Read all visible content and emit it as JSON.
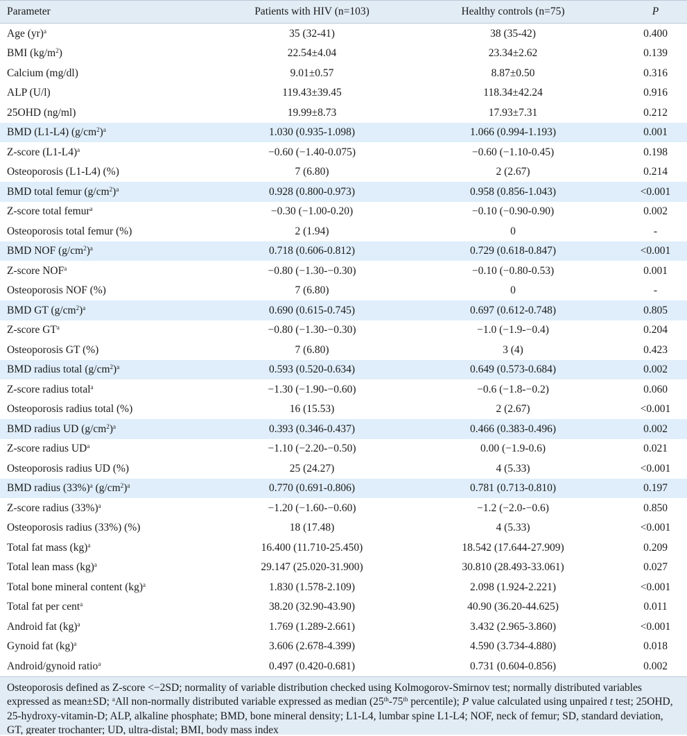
{
  "headers": {
    "parameter": "Parameter",
    "hiv": "Patients with HIV (n=103)",
    "controls": "Healthy controls (n=75)",
    "p": "P"
  },
  "rows": [
    {
      "label": "Age (yr)",
      "sup": "a",
      "hiv": "35 (32-41)",
      "ctrl": "38 (35-42)",
      "p": "0.400",
      "shade": false
    },
    {
      "label": "BMI (kg/m",
      "unitSup": "2",
      "suffix": ")",
      "hiv": "22.54±4.04",
      "ctrl": "23.34±2.62",
      "p": "0.139",
      "shade": false
    },
    {
      "label": "Calcium (mg/dl)",
      "hiv": "9.01±0.57",
      "ctrl": "8.87±0.50",
      "p": "0.316",
      "shade": false
    },
    {
      "label": "ALP (U/l)",
      "hiv": "119.43±39.45",
      "ctrl": "118.34±42.24",
      "p": "0.916",
      "shade": false
    },
    {
      "label": "25OHD (ng/ml)",
      "hiv": "19.99±8.73",
      "ctrl": "17.93±7.31",
      "p": "0.212",
      "shade": false
    },
    {
      "label": "BMD (L1-L4) (g/cm",
      "unitSup": "2",
      "suffix": ")",
      "sup": "a",
      "hiv": "1.030 (0.935-1.098)",
      "ctrl": "1.066 (0.994-1.193)",
      "p": "0.001",
      "shade": true
    },
    {
      "label": "Z-score (L1-L4)",
      "sup": "a",
      "hiv": "−0.60 (−1.40-0.075)",
      "ctrl": "−0.60 (−1.10-0.45)",
      "p": "0.198",
      "shade": false
    },
    {
      "label": "Osteoporosis (L1-L4) (%)",
      "hiv": "7 (6.80)",
      "ctrl": "2 (2.67)",
      "p": "0.214",
      "shade": false
    },
    {
      "label": "BMD total femur (g/cm",
      "unitSup": "2",
      "suffix": ")",
      "sup": "a",
      "hiv": "0.928 (0.800-0.973)",
      "ctrl": "0.958 (0.856-1.043)",
      "p": "<0.001",
      "shade": true
    },
    {
      "label": "Z-score total femur",
      "sup": "a",
      "hiv": "−0.30 (−1.00-0.20)",
      "ctrl": "−0.10 (−0.90-0.90)",
      "p": "0.002",
      "shade": false
    },
    {
      "label": "Osteoporosis total femur (%)",
      "hiv": "2 (1.94)",
      "ctrl": "0",
      "p": "-",
      "shade": false
    },
    {
      "label": "BMD NOF (g/cm",
      "unitSup": "2",
      "suffix": ")",
      "sup": "a",
      "hiv": "0.718 (0.606-0.812)",
      "ctrl": "0.729 (0.618-0.847)",
      "p": "<0.001",
      "shade": true
    },
    {
      "label": "Z-score NOF",
      "sup": "a",
      "hiv": "−0.80 (−1.30-−0.30)",
      "ctrl": "−0.10 (−0.80-0.53)",
      "p": "0.001",
      "shade": false
    },
    {
      "label": "Osteoporosis NOF (%)",
      "hiv": "7 (6.80)",
      "ctrl": "0",
      "p": "-",
      "shade": false
    },
    {
      "label": "BMD GT (g/cm",
      "unitSup": "2",
      "suffix": ")",
      "sup": "a",
      "hiv": "0.690 (0.615-0.745)",
      "ctrl": "0.697 (0.612-0.748)",
      "p": "0.805",
      "shade": true
    },
    {
      "label": "Z-score GT",
      "sup": "a",
      "hiv": "−0.80 (−1.30-−0.30)",
      "ctrl": "−1.0 (−1.9-−0.4)",
      "p": "0.204",
      "shade": false
    },
    {
      "label": "Osteoporosis GT (%)",
      "hiv": "7 (6.80)",
      "ctrl": "3 (4)",
      "p": "0.423",
      "shade": false
    },
    {
      "label": "BMD radius total (g/cm",
      "unitSup": "2",
      "suffix": ")",
      "sup": "a",
      "hiv": "0.593 (0.520-0.634)",
      "ctrl": "0.649 (0.573-0.684)",
      "p": "0.002",
      "shade": true
    },
    {
      "label": "Z-score radius total",
      "sup": "a",
      "hiv": "−1.30 (−1.90-−0.60)",
      "ctrl": "−0.6 (−1.8-−0.2)",
      "p": "0.060",
      "shade": false
    },
    {
      "label": "Osteoporosis radius total (%)",
      "hiv": "16 (15.53)",
      "ctrl": "2 (2.67)",
      "p": "<0.001",
      "shade": false
    },
    {
      "label": "BMD radius UD (g/cm",
      "unitSup": "2",
      "suffix": ")",
      "sup": "a",
      "hiv": "0.393 (0.346-0.437)",
      "ctrl": "0.466 (0.383-0.496)",
      "p": "0.002",
      "shade": true
    },
    {
      "label": "Z-score radius UD",
      "sup": "a",
      "hiv": "−1.10 (−2.20-−0.50)",
      "ctrl": "0.00 (−1.9-0.6)",
      "p": "0.021",
      "shade": false
    },
    {
      "label": "Osteoporosis radius UD (%)",
      "hiv": "25 (24.27)",
      "ctrl": "4 (5.33)",
      "p": "<0.001",
      "shade": false
    },
    {
      "label": "BMD radius (33%)",
      "midSup": "a",
      "label2": " (g/cm",
      "unitSup": "2",
      "suffix": ")",
      "sup": "a",
      "hiv": "0.770 (0.691-0.806)",
      "ctrl": "0.781 (0.713-0.810)",
      "p": "0.197",
      "shade": true
    },
    {
      "label": "Z-score radius (33%)",
      "sup": "a",
      "hiv": "−1.20 (−1.60-−0.60)",
      "ctrl": "−1.2 (−2.0-−0.6)",
      "p": "0.850",
      "shade": false
    },
    {
      "label": "Osteoporosis radius (33%) (%)",
      "hiv": "18 (17.48)",
      "ctrl": "4 (5.33)",
      "p": "<0.001",
      "shade": false
    },
    {
      "label": "Total fat mass (kg)",
      "sup": "a",
      "hiv": "16.400 (11.710-25.450)",
      "ctrl": "18.542 (17.644-27.909)",
      "p": "0.209",
      "shade": false
    },
    {
      "label": "Total lean mass (kg)",
      "sup": "a",
      "hiv": "29.147 (25.020-31.900)",
      "ctrl": "30.810 (28.493-33.061)",
      "p": "0.027",
      "shade": false
    },
    {
      "label": "Total bone mineral content (kg)",
      "sup": "a",
      "hiv": "1.830 (1.578-2.109)",
      "ctrl": "2.098 (1.924-2.221)",
      "p": "<0.001",
      "shade": false
    },
    {
      "label": "Total fat per cent",
      "sup": "a",
      "hiv": "38.20 (32.90-43.90)",
      "ctrl": "40.90 (36.20-44.625)",
      "p": "0.011",
      "shade": false
    },
    {
      "label": "Android fat (kg)",
      "sup": "a",
      "hiv": "1.769 (1.289-2.661)",
      "ctrl": "3.432 (2.965-3.860)",
      "p": "<0.001",
      "shade": false
    },
    {
      "label": "Gynoid fat (kg)",
      "sup": "a",
      "hiv": "3.606 (2.678-4.399)",
      "ctrl": "4.590 (3.734-4.880)",
      "p": "0.018",
      "shade": false
    },
    {
      "label": "Android/gynoid ratio",
      "sup": "a",
      "hiv": "0.497 (0.420-0.681)",
      "ctrl": "0.731 (0.604-0.856)",
      "p": "0.002",
      "shade": false
    }
  ],
  "footnote": {
    "part1": "Osteoporosis defined as Z-score <−2SD; normality of variable distribution checked using Kolmogorov-Smirnov test; normally distributed variables expressed as mean±SD; ",
    "sup_a": "a",
    "part2": "All non-normally distributed variable expressed as median (25",
    "sup_th1": "th",
    "part3": "-75",
    "sup_th2": "th",
    "part4": " percentile); ",
    "p_italic": "P",
    "part5": " value calculated using unpaired ",
    "t_italic": "t",
    "part6": " test; 25OHD, 25-hydroxy-vitamin-D; ALP, alkaline phosphate; BMD, bone mineral density; L1-L4, lumbar spine L1-L4; NOF, neck of femur; SD, standard deviation, GT, greater trochanter; UD, ultra-distal; BMI, body mass index"
  }
}
